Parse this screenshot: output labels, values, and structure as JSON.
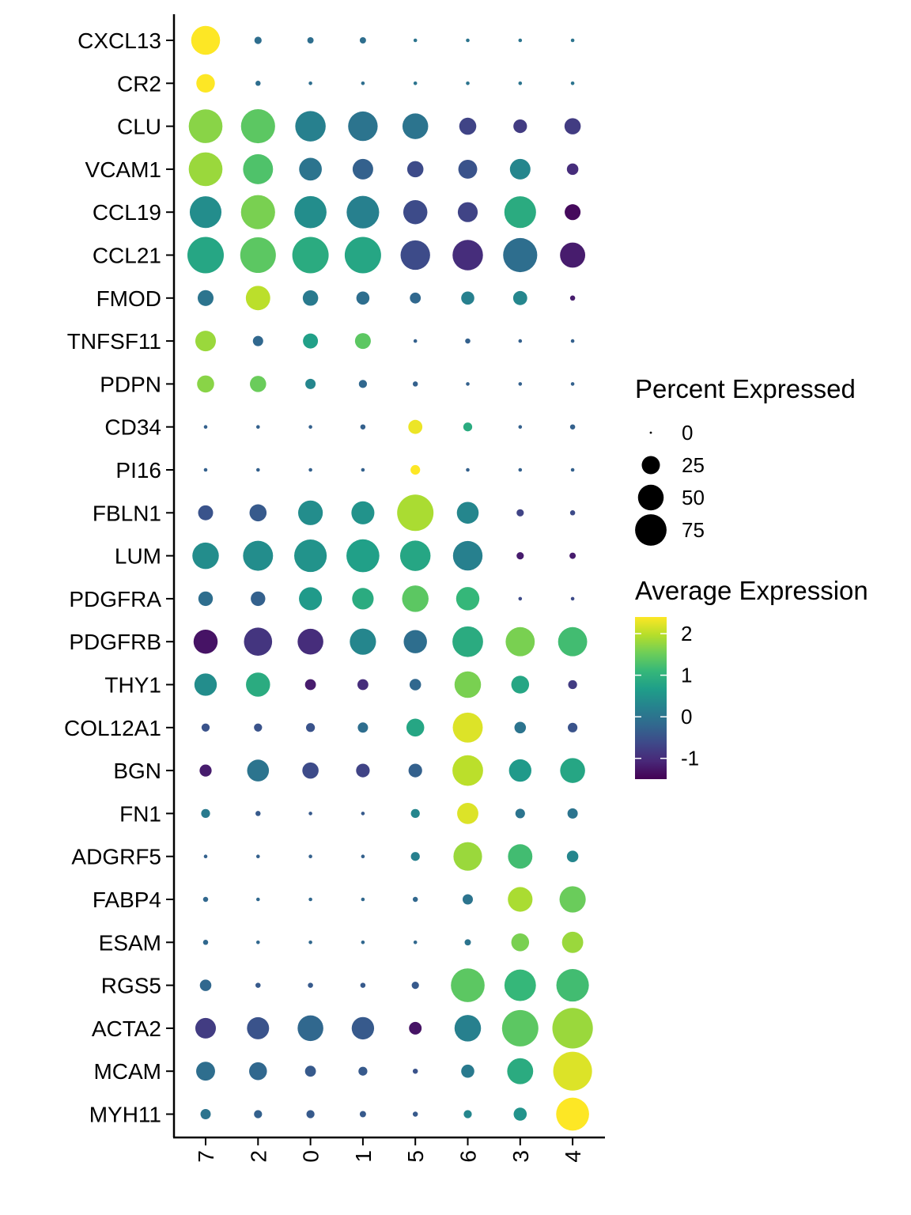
{
  "chart_data": {
    "type": "scatter",
    "subtype": "dot-plot",
    "clusters": [
      "7",
      "2",
      "0",
      "1",
      "5",
      "6",
      "3",
      "4"
    ],
    "genes": [
      "CXCL13",
      "CR2",
      "CLU",
      "VCAM1",
      "CCL19",
      "CCL21",
      "FMOD",
      "TNFSF11",
      "PDPN",
      "CD34",
      "PI16",
      "FBLN1",
      "LUM",
      "PDGFRA",
      "PDGFRB",
      "THY1",
      "COL12A1",
      "BGN",
      "FN1",
      "ADGRF5",
      "FABP4",
      "ESAM",
      "RGS5",
      "ACTA2",
      "MCAM",
      "MYH11"
    ],
    "percent_expressed": [
      [
        63,
        4,
        3,
        3,
        1,
        1,
        1,
        1
      ],
      [
        26,
        2,
        1,
        1,
        1,
        1,
        1,
        1
      ],
      [
        86,
        88,
        70,
        66,
        50,
        22,
        14,
        20
      ],
      [
        86,
        68,
        39,
        32,
        20,
        27,
        32,
        10
      ],
      [
        76,
        88,
        78,
        80,
        44,
        30,
        76,
        19
      ],
      [
        100,
        96,
        100,
        100,
        66,
        70,
        88,
        48
      ],
      [
        19,
        45,
        18,
        13,
        9,
        13,
        15,
        2
      ],
      [
        32,
        8,
        17,
        19,
        1,
        2,
        1,
        1
      ],
      [
        22,
        20,
        8,
        5,
        2,
        1,
        1,
        1
      ],
      [
        1,
        1,
        1,
        2,
        15,
        6,
        1,
        2
      ],
      [
        1,
        1,
        1,
        1,
        7,
        1,
        1,
        1
      ],
      [
        17,
        22,
        46,
        40,
        100,
        36,
        4,
        2
      ],
      [
        53,
        68,
        80,
        82,
        70,
        66,
        4,
        3
      ],
      [
        16,
        16,
        40,
        35,
        53,
        41,
        1,
        1
      ],
      [
        44,
        60,
        50,
        52,
        41,
        71,
        64,
        64
      ],
      [
        38,
        44,
        9,
        9,
        10,
        53,
        24,
        6
      ],
      [
        5,
        5,
        6,
        8,
        24,
        68,
        10,
        7
      ],
      [
        11,
        36,
        20,
        14,
        14,
        71,
        38,
        47
      ],
      [
        6,
        2,
        1,
        1,
        6,
        34,
        7,
        8
      ],
      [
        1,
        1,
        1,
        1,
        6,
        62,
        45,
        10
      ],
      [
        2,
        1,
        1,
        1,
        2,
        8,
        46,
        52
      ],
      [
        2,
        1,
        1,
        1,
        1,
        3,
        24,
        34
      ],
      [
        10,
        2,
        2,
        2,
        4,
        86,
        75,
        80
      ],
      [
        32,
        37,
        50,
        38,
        12,
        53,
        100,
        124
      ],
      [
        27,
        24,
        9,
        6,
        2,
        13,
        51,
        114
      ],
      [
        8,
        5,
        5,
        3,
        2,
        5,
        13,
        82
      ]
    ],
    "average_expression": [
      [
        2.4,
        -0.1,
        -0.1,
        -0.1,
        0.0,
        0.0,
        0.0,
        0.0
      ],
      [
        2.4,
        -0.1,
        -0.1,
        -0.1,
        0.0,
        0.0,
        0.0,
        0.0
      ],
      [
        1.7,
        1.4,
        0.2,
        0.0,
        0.0,
        -0.7,
        -0.8,
        -0.8
      ],
      [
        1.8,
        1.3,
        0.0,
        -0.3,
        -0.6,
        -0.5,
        0.3,
        -1.0
      ],
      [
        0.4,
        1.6,
        0.4,
        0.2,
        -0.6,
        -0.7,
        0.9,
        -1.4
      ],
      [
        0.8,
        1.4,
        0.9,
        0.8,
        -0.6,
        -1.0,
        -0.1,
        -1.2
      ],
      [
        0.0,
        2.0,
        0.1,
        -0.1,
        -0.2,
        0.2,
        0.3,
        -1.2
      ],
      [
        1.8,
        -0.2,
        0.7,
        1.4,
        -0.3,
        -0.3,
        -0.3,
        -0.3
      ],
      [
        1.7,
        1.5,
        0.3,
        -0.2,
        -0.3,
        -0.3,
        -0.3,
        -0.3
      ],
      [
        -0.3,
        -0.3,
        -0.3,
        -0.3,
        2.3,
        0.9,
        -0.3,
        -0.3
      ],
      [
        -0.3,
        -0.3,
        -0.3,
        -0.3,
        2.4,
        -0.3,
        -0.3,
        -0.3
      ],
      [
        -0.5,
        -0.4,
        0.4,
        0.5,
        1.9,
        0.3,
        -0.7,
        -0.6
      ],
      [
        0.4,
        0.4,
        0.5,
        0.7,
        0.8,
        0.2,
        -1.2,
        -1.2
      ],
      [
        -0.1,
        -0.3,
        0.6,
        0.9,
        1.4,
        1.1,
        -0.6,
        -0.6
      ],
      [
        -1.3,
        -0.9,
        -1.0,
        0.3,
        -0.1,
        0.9,
        1.6,
        1.2
      ],
      [
        0.4,
        0.9,
        -1.2,
        -1.0,
        -0.2,
        1.6,
        0.8,
        -0.8
      ],
      [
        -0.5,
        -0.5,
        -0.5,
        -0.1,
        0.8,
        2.2,
        0.0,
        -0.5
      ],
      [
        -1.2,
        0.0,
        -0.6,
        -0.7,
        -0.3,
        2.0,
        0.6,
        0.8
      ],
      [
        0.1,
        -0.4,
        -0.4,
        -0.4,
        0.3,
        2.2,
        0.0,
        0.0
      ],
      [
        -0.3,
        -0.3,
        -0.3,
        -0.3,
        0.2,
        1.8,
        1.2,
        0.3
      ],
      [
        -0.2,
        -0.2,
        -0.2,
        -0.2,
        -0.2,
        0.0,
        1.9,
        1.5
      ],
      [
        -0.2,
        -0.2,
        -0.2,
        -0.2,
        -0.2,
        0.0,
        1.6,
        1.8
      ],
      [
        -0.2,
        -0.4,
        -0.4,
        -0.4,
        -0.4,
        1.4,
        1.1,
        1.2
      ],
      [
        -0.8,
        -0.5,
        -0.2,
        -0.4,
        -1.3,
        0.2,
        1.4,
        1.8
      ],
      [
        -0.1,
        -0.2,
        -0.4,
        -0.4,
        -0.5,
        0.1,
        0.9,
        2.2
      ],
      [
        0.0,
        -0.3,
        -0.4,
        -0.4,
        -0.4,
        0.3,
        0.5,
        2.4
      ]
    ],
    "size_legend": {
      "title": "Percent Expressed",
      "breaks": [
        0,
        25,
        50,
        75
      ],
      "labels": [
        "0",
        "25",
        "50",
        "75"
      ]
    },
    "color_legend": {
      "title": "Average Expression",
      "range": [
        -1.5,
        2.4
      ],
      "ticks": [
        -1,
        0,
        1,
        2
      ],
      "labels": [
        "-1",
        "0",
        "1",
        "2"
      ],
      "palette": [
        "#440154",
        "#482878",
        "#3e4989",
        "#31688e",
        "#26828e",
        "#1f9e89",
        "#35b779",
        "#6ece58",
        "#b5de2b",
        "#fde725"
      ]
    },
    "legend_position": "right",
    "grid": false,
    "xlabel": "",
    "ylabel": ""
  }
}
